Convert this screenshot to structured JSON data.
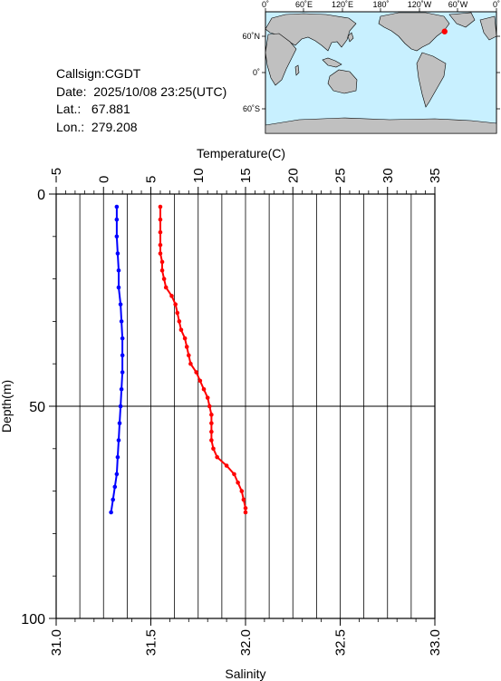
{
  "station": {
    "callsign_text": "Callsign:CGDT",
    "date_text": "Date:  2025/10/08 23:25(UTC)",
    "lat_text": "Lat.:   67.881",
    "lon_text": "Lon.:  279.208"
  },
  "map": {
    "lon_labels": [
      "0˚",
      "60˚E",
      "120˚E",
      "180˚",
      "120˚W",
      "60˚W",
      "0˚"
    ],
    "lat_labels": [
      "60˚N",
      "0˚",
      "60˚S"
    ],
    "marker": {
      "lat": 67.881,
      "lon": 279.208
    },
    "ocean_color": "#c8f0ff",
    "land_color": "#c0c0c0",
    "marker_color": "#ff0000"
  },
  "chart_data": {
    "type": "line",
    "ylabel": "Depth(m)",
    "ylim": [
      100,
      0
    ],
    "yticks": [
      "0",
      "50",
      "100"
    ],
    "temperature_axis": {
      "label": "Temperature(C)",
      "range": [
        -5,
        35
      ],
      "ticks": [
        "−5",
        "0",
        "5",
        "10",
        "15",
        "20",
        "25",
        "30",
        "35"
      ]
    },
    "salinity_axis": {
      "label": "Salinity",
      "range": [
        31.0,
        33.0
      ],
      "ticks": [
        "31.0",
        "31.5",
        "32.0",
        "32.5",
        "33.0"
      ]
    },
    "grid": true,
    "series": [
      {
        "axis": "salinity",
        "color": "#ff0000",
        "points": [
          [
            31.55,
            3
          ],
          [
            31.55,
            6
          ],
          [
            31.55,
            9
          ],
          [
            31.55,
            12
          ],
          [
            31.55,
            14
          ],
          [
            31.56,
            16
          ],
          [
            31.56,
            18
          ],
          [
            31.57,
            20
          ],
          [
            31.58,
            22
          ],
          [
            31.61,
            24
          ],
          [
            31.63,
            26
          ],
          [
            31.64,
            28
          ],
          [
            31.65,
            30
          ],
          [
            31.66,
            32
          ],
          [
            31.68,
            34
          ],
          [
            31.69,
            36
          ],
          [
            31.7,
            38
          ],
          [
            31.71,
            40
          ],
          [
            31.74,
            42
          ],
          [
            31.76,
            44
          ],
          [
            31.78,
            46
          ],
          [
            31.8,
            48
          ],
          [
            31.81,
            50
          ],
          [
            31.82,
            52
          ],
          [
            31.82,
            54
          ],
          [
            31.82,
            56
          ],
          [
            31.82,
            58
          ],
          [
            31.83,
            60
          ],
          [
            31.85,
            62
          ],
          [
            31.9,
            64
          ],
          [
            31.94,
            66
          ],
          [
            31.96,
            68
          ],
          [
            31.98,
            70
          ],
          [
            31.99,
            72
          ],
          [
            32.0,
            74
          ],
          [
            32.0,
            75
          ]
        ]
      },
      {
        "axis": "temperature",
        "color": "#0000ff",
        "points": [
          [
            1.4,
            3
          ],
          [
            1.4,
            6
          ],
          [
            1.4,
            10
          ],
          [
            1.5,
            14
          ],
          [
            1.6,
            18
          ],
          [
            1.6,
            22
          ],
          [
            1.8,
            26
          ],
          [
            1.9,
            30
          ],
          [
            2.0,
            34
          ],
          [
            2.0,
            38
          ],
          [
            2.0,
            42
          ],
          [
            1.9,
            46
          ],
          [
            1.8,
            50
          ],
          [
            1.7,
            54
          ],
          [
            1.6,
            58
          ],
          [
            1.5,
            62
          ],
          [
            1.4,
            66
          ],
          [
            1.2,
            69
          ],
          [
            1.0,
            72
          ],
          [
            0.8,
            75
          ]
        ]
      }
    ]
  }
}
